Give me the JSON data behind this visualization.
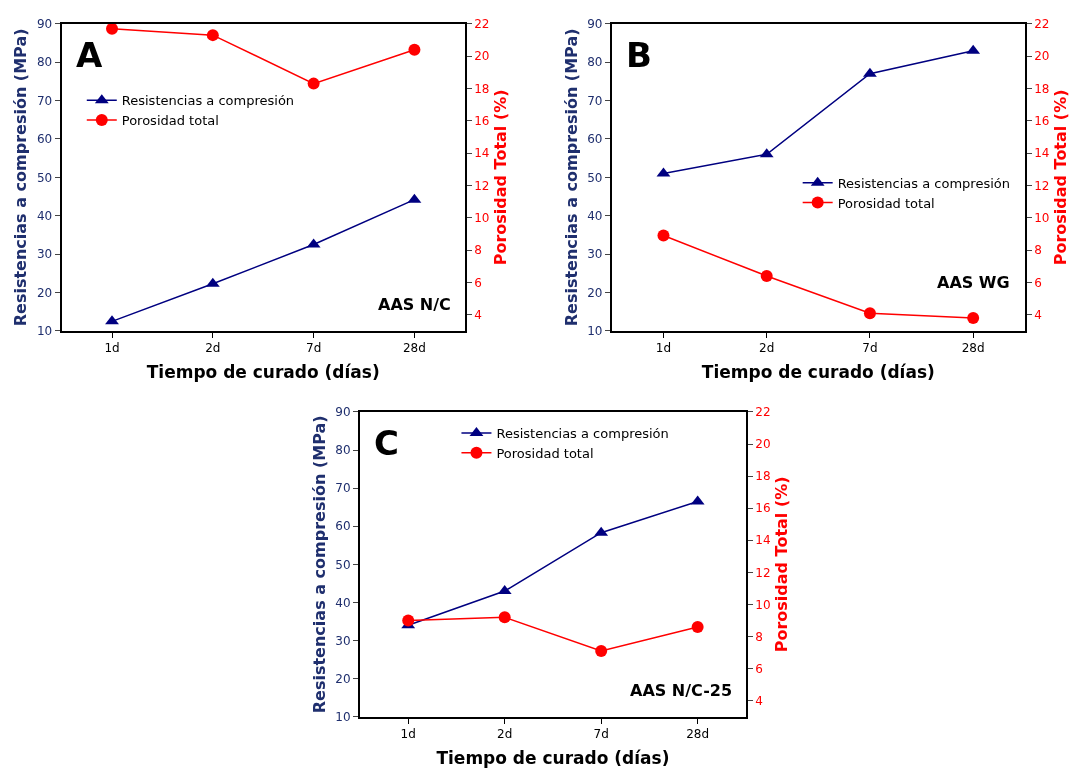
{
  "chart_data": [
    {
      "type": "line",
      "categories": [
        "1d",
        "2d",
        "7d",
        "28d"
      ],
      "xlabel": "Tiempo de curado (días)",
      "ylabel": "Resistencias a compresión (MPa)",
      "y2label": "Porosidad Total (%)",
      "ylim": [
        10,
        90
      ],
      "yticks": [
        10,
        20,
        30,
        40,
        50,
        60,
        70,
        80,
        90
      ],
      "y2lim": [
        3,
        22
      ],
      "y2ticks": [
        4,
        6,
        8,
        10,
        12,
        14,
        16,
        18,
        20,
        22
      ],
      "legend": "top left",
      "annotations": [
        "A",
        "AAS N/C"
      ],
      "series": [
        {
          "name": "Resistencias a compresión",
          "color": "#000080",
          "marker": "triangle",
          "values": [
            12.5,
            22.3,
            32.5,
            44.2
          ]
        },
        {
          "name": "Porosidad total",
          "color": "#ff0000",
          "marker": "circle",
          "axis": "y2",
          "values": [
            21.7,
            21.3,
            18.3,
            20.4
          ]
        }
      ]
    },
    {
      "type": "line",
      "categories": [
        "1d",
        "2d",
        "7d",
        "28d"
      ],
      "xlabel": "Tiempo de curado (días)",
      "ylabel": "Resistencias a compresión (MPa)",
      "y2label": "Porosidad Total (%)",
      "ylim": [
        10,
        90
      ],
      "yticks": [
        10,
        20,
        30,
        40,
        50,
        60,
        70,
        80,
        90
      ],
      "y2lim": [
        3,
        22
      ],
      "y2ticks": [
        4,
        6,
        8,
        10,
        12,
        14,
        16,
        18,
        20,
        22
      ],
      "legend": "right",
      "annotations": [
        "B",
        "AAS WG"
      ],
      "series": [
        {
          "name": "Resistencias a compresión",
          "color": "#000080",
          "marker": "triangle",
          "values": [
            51,
            56,
            77,
            83
          ]
        },
        {
          "name": "Porosidad total",
          "color": "#ff0000",
          "marker": "circle",
          "axis": "y2",
          "values": [
            8.9,
            6.4,
            4.1,
            3.8
          ]
        }
      ]
    },
    {
      "type": "line",
      "categories": [
        "1d",
        "2d",
        "7d",
        "28d"
      ],
      "xlabel": "Tiempo de curado (días)",
      "ylabel": "Resistencias a compresión (MPa)",
      "y2label": "Porosidad Total (%)",
      "ylim": [
        10,
        90
      ],
      "yticks": [
        10,
        20,
        30,
        40,
        50,
        60,
        70,
        80,
        90
      ],
      "y2lim": [
        3,
        22
      ],
      "y2ticks": [
        4,
        6,
        8,
        10,
        12,
        14,
        16,
        18,
        20,
        22
      ],
      "legend": "top",
      "annotations": [
        "C",
        "AAS N/C-25"
      ],
      "series": [
        {
          "name": "Resistencias a compresión",
          "color": "#000080",
          "marker": "triangle",
          "values": [
            34,
            43,
            58.3,
            66.5
          ]
        },
        {
          "name": "Porosidad total",
          "color": "#ff0000",
          "marker": "circle",
          "axis": "y2",
          "values": [
            9.0,
            9.2,
            7.1,
            8.6
          ]
        }
      ]
    }
  ]
}
